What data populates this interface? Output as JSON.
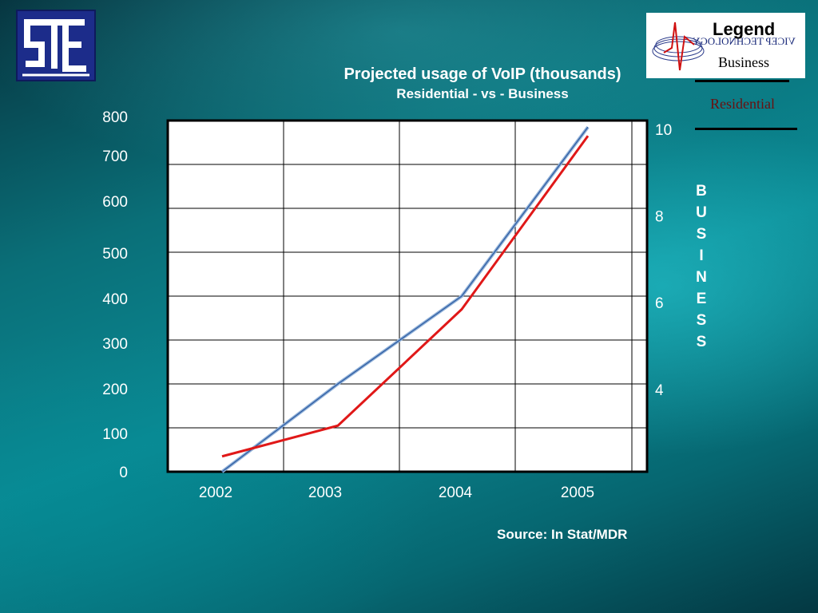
{
  "logos": {
    "left": {
      "text": "StE"
    },
    "right": {
      "fine_print": "VICEP TECHNOLOGY"
    }
  },
  "legend": {
    "title": "Legend",
    "business_label": "Business",
    "residential_label": "Residential"
  },
  "vertical_axis_label": [
    "B",
    "U",
    "S",
    "I",
    "N",
    "E",
    "S",
    "S"
  ],
  "source": "Source: In Stat/MDR",
  "colors": {
    "residential": "#e01818",
    "business": "#8fb0d8",
    "business_core": "#2c5aa0",
    "plot_bg": "#ffffff",
    "grid": "#000000",
    "text": "#ffffff"
  },
  "chart_data": {
    "type": "line",
    "title": "Projected usage of VoIP  (thousands)",
    "subtitle": "Residential - vs - Business",
    "categories": [
      "2002",
      "2003",
      "2004",
      "2005"
    ],
    "x_ticks": [
      "2002",
      "2003",
      "2004",
      "2005"
    ],
    "y_left_ticks": [
      "0",
      "100",
      "200",
      "300",
      "400",
      "500",
      "600",
      "700",
      "800"
    ],
    "y_left_range": [
      0,
      800
    ],
    "y_right_ticks": [
      "4",
      "6",
      "8",
      "10"
    ],
    "y_right_range": [
      2.1,
      10.2
    ],
    "grid": true,
    "legend_position": "top-right",
    "series": [
      {
        "name": "Residential",
        "axis": "left",
        "points": [
          {
            "x": 2002,
            "y": 35
          },
          {
            "x": 2003,
            "y": 105
          },
          {
            "x": 2004,
            "y": 370
          },
          {
            "x": 2005,
            "y": 765
          }
        ]
      },
      {
        "name": "Business",
        "axis": "left",
        "points": [
          {
            "x": 2002,
            "y": 0
          },
          {
            "x": 2003,
            "y": 200
          },
          {
            "x": 2004,
            "y": 400
          },
          {
            "x": 2005,
            "y": 785
          }
        ]
      }
    ]
  }
}
